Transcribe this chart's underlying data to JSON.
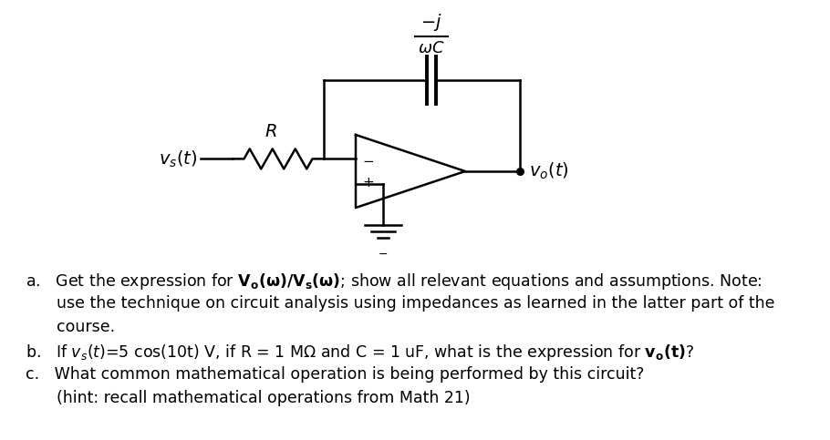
{
  "bg_color": "#ffffff",
  "fig_width": 9.1,
  "fig_height": 4.83,
  "dpi": 100,
  "line_color": "#000000",
  "lw": 1.8,
  "vs_label": "$v_s(t)$",
  "R_label": "$R$",
  "vo_label": "$v_o(t)$",
  "frac_num": "$-j$",
  "frac_den": "$\\omega C$",
  "minus_sym": "$-$",
  "plus_sym": "$+$",
  "gnd_minus": "$-$",
  "text_a_prefix": "a.",
  "text_a_main": "   Get the expression for $\\mathbf{V_o(\\omega)/V_s(\\omega)}$; show all relevant equations and assumptions. Note:",
  "text_a2": "   use the technique on circuit analysis using impedances as learned in the latter part of the",
  "text_a3": "   course.",
  "text_b_prefix": "b.",
  "text_b_main": "   If $v_s(t)$=5 cos(10t) V, if R = 1 M$\\Omega$ and C = 1 uF, what is the expression for $\\mathbf{v_o(t)}$?",
  "text_c_prefix": "c.",
  "text_c_main": "   What common mathematical operation is being performed by this circuit?",
  "text_c2": "   (hint: recall mathematical operations from Math 21)"
}
